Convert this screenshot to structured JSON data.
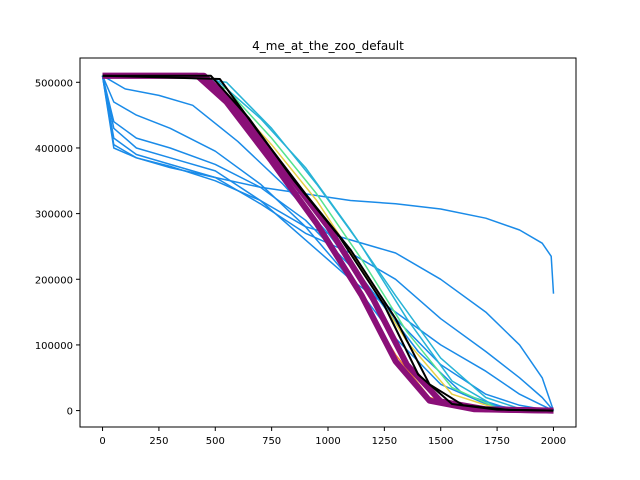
{
  "chart_data": {
    "type": "line",
    "title": "4_me_at_the_zoo_default",
    "xlabel": "",
    "ylabel": "",
    "xlim": [
      -100,
      2100
    ],
    "ylim": [
      -25000,
      537000
    ],
    "x_ticks": [
      0,
      250,
      500,
      750,
      1000,
      1250,
      1500,
      1750,
      2000
    ],
    "x_tick_labels": [
      "0",
      "250",
      "500",
      "750",
      "1000",
      "1250",
      "1500",
      "1750",
      "2000"
    ],
    "y_ticks": [
      0,
      100000,
      200000,
      300000,
      400000,
      500000
    ],
    "y_tick_labels": [
      "0",
      "100000",
      "200000",
      "300000",
      "400000",
      "500000"
    ],
    "grid": false,
    "legend": "none",
    "colors": {
      "blue": "#1a8be8",
      "cyan": "#27b3d6",
      "green": "#55e390",
      "yellow": "#e6d046",
      "orange": "#ee7d2b",
      "purple": "#8a0f78",
      "black": "#000000"
    },
    "series": [
      {
        "color": "blue",
        "x": [
          0,
          50,
          150,
          300,
          500,
          700,
          900,
          1100,
          1300,
          1500,
          1700,
          1850,
          1950,
          1990,
          2000
        ],
        "y": [
          510000,
          400000,
          385000,
          370000,
          355000,
          340000,
          330000,
          320000,
          315000,
          307000,
          293000,
          275000,
          255000,
          235000,
          178000
        ]
      },
      {
        "color": "blue",
        "x": [
          0,
          50,
          150,
          300,
          500,
          700,
          900,
          1100,
          1300,
          1500,
          1700,
          1850,
          1950,
          2000
        ],
        "y": [
          510000,
          405000,
          385000,
          372000,
          350000,
          320000,
          280000,
          260000,
          240000,
          200000,
          150000,
          100000,
          50000,
          0
        ]
      },
      {
        "color": "blue",
        "x": [
          0,
          50,
          150,
          300,
          500,
          700,
          900,
          1100,
          1300,
          1500,
          1700,
          1850,
          1950,
          2000
        ],
        "y": [
          510000,
          415000,
          390000,
          375000,
          355000,
          315000,
          270000,
          240000,
          200000,
          140000,
          90000,
          50000,
          20000,
          0
        ]
      },
      {
        "color": "blue",
        "x": [
          0,
          50,
          150,
          300,
          500,
          700,
          900,
          1100,
          1300,
          1500,
          1700,
          1850,
          1950,
          2000
        ],
        "y": [
          510000,
          430000,
          400000,
          385000,
          365000,
          320000,
          260000,
          200000,
          150000,
          100000,
          60000,
          25000,
          8000,
          0
        ]
      },
      {
        "color": "blue",
        "x": [
          0,
          50,
          150,
          300,
          500,
          700,
          900,
          1100,
          1300,
          1500,
          1700,
          1850,
          1950,
          2000
        ],
        "y": [
          510000,
          440000,
          415000,
          400000,
          375000,
          340000,
          290000,
          220000,
          140000,
          70000,
          25000,
          8000,
          2000,
          0
        ]
      },
      {
        "color": "blue",
        "x": [
          0,
          50,
          150,
          300,
          500,
          700,
          900,
          1100,
          1300,
          1500,
          1700,
          1850,
          2000
        ],
        "y": [
          510000,
          470000,
          450000,
          430000,
          395000,
          345000,
          280000,
          200000,
          110000,
          40000,
          10000,
          2000,
          0
        ]
      },
      {
        "color": "blue",
        "x": [
          0,
          100,
          250,
          400,
          600,
          800,
          1000,
          1200,
          1400,
          1600,
          1800,
          2000
        ],
        "y": [
          510000,
          490000,
          480000,
          465000,
          410000,
          345000,
          270000,
          180000,
          90000,
          25000,
          3000,
          0
        ]
      },
      {
        "color": "cyan",
        "x": [
          0,
          300,
          500,
          700,
          900,
          1100,
          1300,
          1500,
          1700,
          1850,
          2000
        ],
        "y": [
          510000,
          510000,
          505000,
          445000,
          370000,
          275000,
          175000,
          80000,
          20000,
          3000,
          0
        ]
      },
      {
        "color": "cyan",
        "x": [
          0,
          300,
          550,
          750,
          950,
          1150,
          1350,
          1550,
          1750,
          2000
        ],
        "y": [
          510000,
          510000,
          500000,
          430000,
          345000,
          250000,
          140000,
          45000,
          5000,
          0
        ]
      },
      {
        "color": "green",
        "x": [
          0,
          400,
          550,
          750,
          950,
          1150,
          1350,
          1550,
          1750,
          2000
        ],
        "y": [
          510000,
          510000,
          490000,
          415000,
          330000,
          230000,
          120000,
          35000,
          4000,
          0
        ]
      },
      {
        "color": "yellow",
        "x": [
          0,
          400,
          550,
          750,
          950,
          1150,
          1350,
          1550,
          1750,
          2000
        ],
        "y": [
          510000,
          510000,
          480000,
          405000,
          320000,
          215000,
          105000,
          25000,
          3000,
          0
        ]
      },
      {
        "color": "orange",
        "x": [
          0,
          380,
          500,
          700,
          900,
          1100,
          1300,
          1450,
          1650,
          2000
        ],
        "y": [
          510000,
          510000,
          495000,
          405000,
          310000,
          200000,
          85000,
          20000,
          2000,
          0
        ]
      },
      {
        "color": "purple",
        "x": [
          0,
          420,
          550,
          750,
          950,
          1150,
          1300,
          1450,
          1650,
          2000
        ],
        "y": [
          510000,
          510000,
          470000,
          380000,
          285000,
          175000,
          75000,
          15000,
          2000,
          0
        ]
      },
      {
        "color": "purple",
        "x": [
          0,
          450,
          600,
          800,
          1000,
          1200,
          1350,
          1500,
          1700,
          2000
        ],
        "y": [
          510000,
          510000,
          460000,
          370000,
          280000,
          170000,
          70000,
          14000,
          2000,
          0
        ]
      },
      {
        "color": "black",
        "x": [
          0,
          480,
          650,
          850,
          1050,
          1250,
          1400,
          1550,
          1750,
          2000
        ],
        "y": [
          510000,
          510000,
          445000,
          350000,
          265000,
          160000,
          55000,
          10000,
          1500,
          0
        ]
      },
      {
        "color": "black",
        "x": [
          0,
          520,
          700,
          900,
          1100,
          1300,
          1450,
          1600,
          1800,
          2000
        ],
        "y": [
          510000,
          505000,
          420000,
          330000,
          245000,
          140000,
          40000,
          8000,
          1000,
          0
        ]
      }
    ]
  }
}
